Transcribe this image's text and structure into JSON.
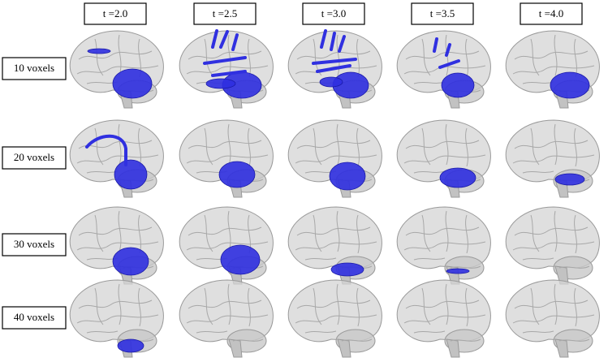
{
  "columns": [
    "t =2.0",
    "t =2.5",
    "t =3.0",
    "t =3.5",
    "t =4.0"
  ],
  "rows": [
    "10 voxels",
    "20 voxels",
    "30 voxels",
    "40 voxels"
  ]
}
